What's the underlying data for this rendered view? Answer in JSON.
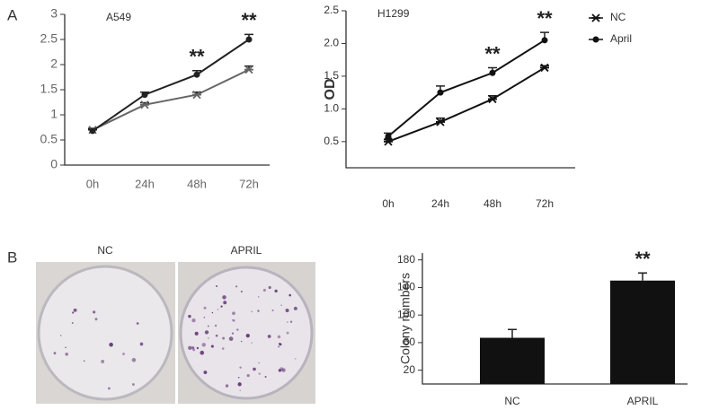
{
  "panels": [
    "A",
    "B"
  ],
  "photos": {
    "labels": [
      "NC",
      "APRIL"
    ]
  },
  "chart_data": [
    {
      "type": "line",
      "title": "A549",
      "categories": [
        "0h",
        "24h",
        "48h",
        "72h"
      ],
      "series": [
        {
          "name": "NC",
          "color": "#666666",
          "marker": "x",
          "values": [
            0.7,
            1.2,
            1.4,
            1.9
          ],
          "errors": [
            0.03,
            0.04,
            0.05,
            0.07
          ]
        },
        {
          "name": "April",
          "color": "#222222",
          "marker": "o",
          "values": [
            0.68,
            1.4,
            1.8,
            2.5
          ],
          "errors": [
            0.03,
            0.05,
            0.08,
            0.1
          ]
        }
      ],
      "ylim": [
        0,
        3
      ],
      "yticks": [
        0,
        0.5,
        1,
        1.5,
        2,
        2.5,
        3
      ],
      "annotations": [
        "**",
        "**"
      ]
    },
    {
      "type": "line",
      "title": "H1299",
      "ylabel": "OD",
      "categories": [
        "0h",
        "24h",
        "48h",
        "72h"
      ],
      "series": [
        {
          "name": "NC",
          "color": "#111111",
          "marker": "x",
          "values": [
            0.5,
            0.8,
            1.15,
            1.63
          ],
          "errors": [
            0.03,
            0.06,
            0.05,
            0.03
          ]
        },
        {
          "name": "April",
          "color": "#111111",
          "marker": "o",
          "values": [
            0.58,
            1.25,
            1.55,
            2.05
          ],
          "errors": [
            0.05,
            0.1,
            0.08,
            0.12
          ]
        }
      ],
      "ylim": [
        0.1,
        2.5
      ],
      "yticks": [
        0.5,
        {
          "value": 1,
          "label": "1.0"
        },
        1.5,
        {
          "value": 2,
          "label": "2.0"
        },
        2.5
      ],
      "legend": "upper right",
      "annotations": [
        "**",
        "**"
      ]
    },
    {
      "type": "bar",
      "ylabel": "Colony numbers",
      "categories": [
        "NC",
        "APRIL"
      ],
      "values": [
        67,
        150
      ],
      "errors": [
        12,
        11
      ],
      "color": "#111111",
      "ylim": [
        0,
        190
      ],
      "yticks": [
        20,
        60,
        100,
        140,
        180
      ],
      "annotations": [
        "**"
      ]
    }
  ]
}
